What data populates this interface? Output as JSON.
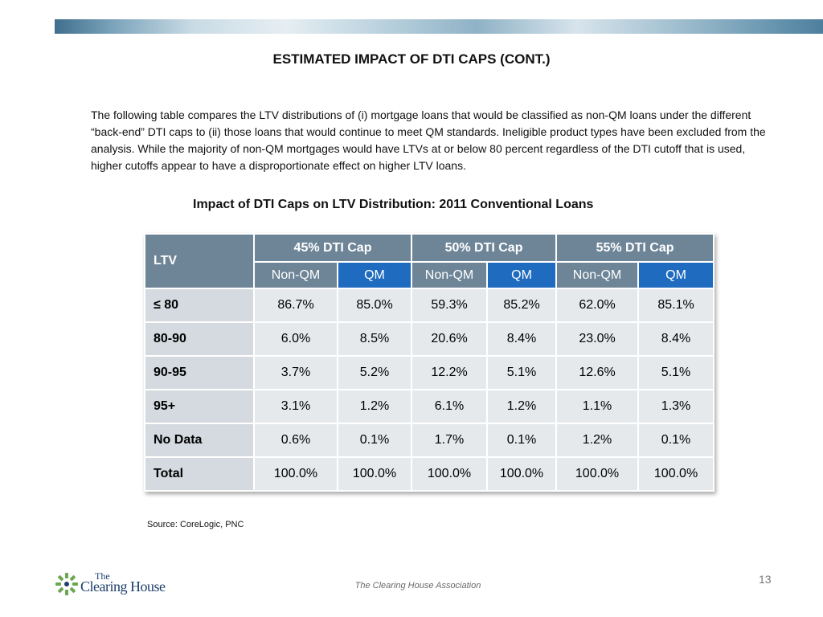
{
  "title": "ESTIMATED IMPACT OF DTI CAPS (CONT.)",
  "intro": "The following table compares the LTV distributions of (i) mortgage loans that would be classified as non-QM loans under the different “back-end” DTI caps to (ii) those loans that would continue to meet QM standards.  Ineligible product types have been excluded from the analysis.  While the majority of non-QM mortgages would have LTVs at or below 80 percent regardless of the DTI cutoff that is used, higher cutoffs appear to have a disproportionate effect on higher LTV loans.",
  "table": {
    "title": "Impact of DTI Caps on LTV Distribution:  2011 Conventional Loans",
    "ltv_header": "LTV",
    "caps": [
      "45% DTI Cap",
      "50% DTI Cap",
      "55% DTI Cap"
    ],
    "subheaders": [
      "Non-QM",
      "QM",
      "Non-QM",
      "QM",
      "Non-QM",
      "QM"
    ],
    "rows": [
      {
        "label": "≤ 80",
        "values": [
          "86.7%",
          "85.0%",
          "59.3%",
          "85.2%",
          "62.0%",
          "85.1%"
        ]
      },
      {
        "label": "80-90",
        "values": [
          "6.0%",
          "8.5%",
          "20.6%",
          "8.4%",
          "23.0%",
          "8.4%"
        ]
      },
      {
        "label": "90-95",
        "values": [
          "3.7%",
          "5.2%",
          "12.2%",
          "5.1%",
          "12.6%",
          "5.1%"
        ]
      },
      {
        "label": "95+",
        "values": [
          "3.1%",
          "1.2%",
          "6.1%",
          "1.2%",
          "1.1%",
          "1.3%"
        ]
      },
      {
        "label": "No Data",
        "values": [
          "0.6%",
          "0.1%",
          "1.7%",
          "0.1%",
          "1.2%",
          "0.1%"
        ]
      },
      {
        "label": "Total",
        "values": [
          "100.0%",
          "100.0%",
          "100.0%",
          "100.0%",
          "100.0%",
          "100.0%"
        ]
      }
    ]
  },
  "source": "Source: CoreLogic, PNC",
  "logo": {
    "line1": "The",
    "line2": "Clearing House",
    "icon": "sunburst-logo-icon"
  },
  "footer": "The Clearing House Association",
  "page_number": "13",
  "colors": {
    "header": "#6e8598",
    "qm_header": "#1f6bbf",
    "row_label": "#d4dae0",
    "cell": "#e6e9ec",
    "logo_green": "#6aa84f",
    "logo_navy": "#1e3f6a"
  }
}
